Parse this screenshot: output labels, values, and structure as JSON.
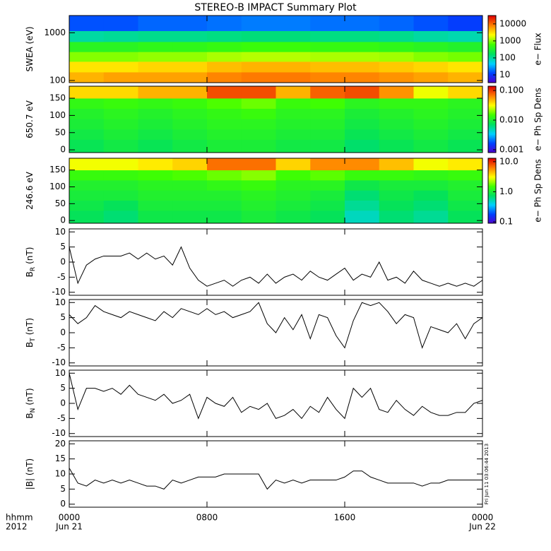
{
  "title": "STEREO-B IMPACT Summary Plot",
  "xaxis": {
    "xlim": [
      0,
      24
    ],
    "xticks": [
      {
        "value": 0,
        "label": "0000"
      },
      {
        "value": 8,
        "label": "0800"
      },
      {
        "value": 16,
        "label": "1600"
      },
      {
        "value": 24,
        "label": "0000"
      }
    ],
    "date_labels": [
      "Jun 21",
      "Jun 22"
    ],
    "axis_labels": [
      "hhmm",
      "2012"
    ]
  },
  "annotation": "Fri Jun 11 03:06:44 2013",
  "colormap": [
    "#5000d0",
    "#0040ff",
    "#00d0ff",
    "#00e060",
    "#40ff00",
    "#ffff00",
    "#ff8000",
    "#e00000"
  ],
  "chart_data": [
    {
      "type": "heatmap",
      "ylabel": "SWEA (eV)",
      "ylog": true,
      "ylim": [
        90,
        2300
      ],
      "yticks": [
        100,
        1000
      ],
      "xbins": [
        0,
        2,
        4,
        6,
        8,
        10,
        12,
        14,
        16,
        18,
        20,
        22,
        24
      ],
      "ybins": [
        90,
        150,
        250,
        400,
        650,
        1100,
        2300
      ],
      "z": [
        [
          5000,
          6000,
          6000,
          6000,
          8000,
          9000,
          9000,
          8000,
          8000,
          7000,
          6000,
          5000
        ],
        [
          3000,
          3000,
          3500,
          3500,
          4500,
          5000,
          5000,
          4500,
          4500,
          4000,
          3500,
          3000
        ],
        [
          1000,
          1000,
          1100,
          1100,
          1300,
          1400,
          1400,
          1300,
          1300,
          1200,
          1000,
          900
        ],
        [
          400,
          400,
          450,
          450,
          500,
          550,
          550,
          500,
          500,
          450,
          400,
          350
        ],
        [
          100,
          110,
          120,
          120,
          130,
          140,
          140,
          130,
          130,
          120,
          100,
          90
        ],
        [
          15,
          15,
          18,
          18,
          20,
          22,
          22,
          20,
          20,
          18,
          15,
          12
        ]
      ],
      "colorbar": {
        "label": "e− Flux",
        "log": true,
        "clim": [
          3.5,
          31000
        ],
        "ticks": [
          10,
          100,
          1000,
          10000
        ]
      }
    },
    {
      "type": "heatmap",
      "ylabel": "650.7 eV",
      "ylog": false,
      "ylim": [
        -8,
        185
      ],
      "yticks": [
        0,
        50,
        100,
        150
      ],
      "xbins": [
        0,
        2,
        4,
        6,
        8,
        10,
        12,
        14,
        16,
        18,
        20,
        22,
        24
      ],
      "ybins": [
        -8,
        30,
        60,
        90,
        120,
        150,
        185
      ],
      "z": [
        [
          0.008,
          0.009,
          0.008,
          0.009,
          0.01,
          0.01,
          0.009,
          0.009,
          0.007,
          0.008,
          0.009,
          0.008
        ],
        [
          0.009,
          0.01,
          0.009,
          0.01,
          0.011,
          0.011,
          0.01,
          0.01,
          0.008,
          0.009,
          0.01,
          0.009
        ],
        [
          0.01,
          0.011,
          0.01,
          0.011,
          0.012,
          0.012,
          0.011,
          0.011,
          0.009,
          0.01,
          0.011,
          0.01
        ],
        [
          0.011,
          0.012,
          0.011,
          0.012,
          0.013,
          0.014,
          0.012,
          0.012,
          0.01,
          0.011,
          0.012,
          0.011
        ],
        [
          0.013,
          0.014,
          0.013,
          0.014,
          0.016,
          0.018,
          0.014,
          0.015,
          0.012,
          0.013,
          0.013,
          0.012
        ],
        [
          0.04,
          0.04,
          0.05,
          0.05,
          0.09,
          0.09,
          0.05,
          0.08,
          0.09,
          0.06,
          0.03,
          0.04
        ]
      ],
      "colorbar": {
        "label": "e− Ph Sp Dens",
        "log": true,
        "clim": [
          0.0008,
          0.14
        ],
        "ticks": [
          {
            "value": 0.001,
            "label": "0.001"
          },
          {
            "value": 0.01,
            "label": "0.010"
          },
          {
            "value": 0.1,
            "label": "0.100"
          }
        ]
      }
    },
    {
      "type": "heatmap",
      "ylabel": "246.6 eV",
      "ylog": false,
      "ylim": [
        -8,
        185
      ],
      "yticks": [
        0,
        50,
        100,
        150
      ],
      "xbins": [
        0,
        2,
        4,
        6,
        8,
        10,
        12,
        14,
        16,
        18,
        20,
        22,
        24
      ],
      "ybins": [
        -8,
        30,
        60,
        90,
        120,
        150,
        185
      ],
      "z": [
        [
          0.8,
          0.7,
          0.9,
          0.9,
          0.9,
          1.0,
          0.9,
          0.8,
          0.5,
          0.7,
          0.6,
          0.8
        ],
        [
          0.9,
          0.8,
          1.0,
          1.0,
          1.0,
          1.1,
          1.0,
          0.9,
          0.6,
          0.8,
          0.7,
          0.9
        ],
        [
          1.0,
          1.0,
          1.1,
          1.1,
          1.1,
          1.2,
          1.1,
          1.0,
          0.7,
          0.9,
          0.8,
          1.0
        ],
        [
          1.1,
          1.1,
          1.2,
          1.2,
          1.3,
          1.4,
          1.2,
          1.2,
          0.9,
          1.0,
          1.0,
          1.1
        ],
        [
          1.4,
          1.4,
          1.5,
          1.6,
          1.8,
          2.0,
          1.5,
          1.7,
          1.4,
          1.4,
          1.3,
          1.4
        ],
        [
          3,
          3,
          3.5,
          4,
          7,
          7,
          4,
          6,
          6,
          4.5,
          3,
          3.5
        ]
      ],
      "colorbar": {
        "label": "e− Ph Sp Dens",
        "log": true,
        "clim": [
          0.09,
          13
        ],
        "ticks": [
          0.1,
          {
            "value": 1,
            "label": "1.0"
          },
          {
            "value": 10,
            "label": "10.0"
          }
        ]
      }
    },
    {
      "type": "line",
      "ylabel": "B",
      "ylabel_sub": "R",
      "ylabel_unit": "(nT)",
      "color": "#000000",
      "ylim": [
        -11,
        11
      ],
      "yticks": [
        -10,
        -5,
        0,
        5,
        10
      ],
      "x": [
        0,
        0.5,
        1,
        1.5,
        2,
        2.5,
        3,
        3.5,
        4,
        4.5,
        5,
        5.5,
        6,
        6.5,
        7,
        7.5,
        8,
        8.5,
        9,
        9.5,
        10,
        10.5,
        11,
        11.5,
        12,
        12.5,
        13,
        13.5,
        14,
        14.5,
        15,
        15.5,
        16,
        16.5,
        17,
        17.5,
        18,
        18.5,
        19,
        19.5,
        20,
        20.5,
        21,
        21.5,
        22,
        22.5,
        23,
        23.5,
        24
      ],
      "values": [
        5,
        -7,
        -1,
        1,
        2,
        2,
        2,
        3,
        1,
        3,
        1,
        2,
        -1,
        5,
        -2,
        -6,
        -8,
        -7,
        -6,
        -8,
        -6,
        -5,
        -7,
        -4,
        -7,
        -5,
        -4,
        -6,
        -3,
        -5,
        -6,
        -4,
        -2,
        -6,
        -4,
        -5,
        0,
        -6,
        -5,
        -7,
        -3,
        -6,
        -7,
        -8,
        -7,
        -8,
        -7,
        -8,
        -6
      ]
    },
    {
      "type": "line",
      "ylabel": "B",
      "ylabel_sub": "T",
      "ylabel_unit": "(nT)",
      "color": "#000000",
      "ylim": [
        -11,
        11
      ],
      "yticks": [
        -10,
        -5,
        0,
        5,
        10
      ],
      "x": [
        0,
        0.5,
        1,
        1.5,
        2,
        2.5,
        3,
        3.5,
        4,
        4.5,
        5,
        5.5,
        6,
        6.5,
        7,
        7.5,
        8,
        8.5,
        9,
        9.5,
        10,
        10.5,
        11,
        11.5,
        12,
        12.5,
        13,
        13.5,
        14,
        14.5,
        15,
        15.5,
        16,
        16.5,
        17,
        17.5,
        18,
        18.5,
        19,
        19.5,
        20,
        20.5,
        21,
        21.5,
        22,
        22.5,
        23,
        23.5,
        24
      ],
      "values": [
        6,
        3,
        5,
        9,
        7,
        6,
        5,
        7,
        6,
        5,
        4,
        7,
        5,
        8,
        7,
        6,
        8,
        6,
        7,
        5,
        6,
        7,
        10,
        3,
        0,
        5,
        1,
        6,
        -2,
        6,
        5,
        -1,
        -5,
        4,
        10,
        9,
        10,
        7,
        3,
        6,
        5,
        -5,
        2,
        1,
        0,
        3,
        -2,
        3,
        5
      ]
    },
    {
      "type": "line",
      "ylabel": "B",
      "ylabel_sub": "N",
      "ylabel_unit": "(nT)",
      "color": "#000000",
      "ylim": [
        -11,
        11
      ],
      "yticks": [
        -10,
        -5,
        0,
        5,
        10
      ],
      "x": [
        0,
        0.5,
        1,
        1.5,
        2,
        2.5,
        3,
        3.5,
        4,
        4.5,
        5,
        5.5,
        6,
        6.5,
        7,
        7.5,
        8,
        8.5,
        9,
        9.5,
        10,
        10.5,
        11,
        11.5,
        12,
        12.5,
        13,
        13.5,
        14,
        14.5,
        15,
        15.5,
        16,
        16.5,
        17,
        17.5,
        18,
        18.5,
        19,
        19.5,
        20,
        20.5,
        21,
        21.5,
        22,
        22.5,
        23,
        23.5,
        24
      ],
      "values": [
        10,
        -2,
        5,
        5,
        4,
        5,
        3,
        6,
        3,
        2,
        1,
        3,
        0,
        1,
        3,
        -5,
        2,
        0,
        -1,
        2,
        -3,
        -1,
        -2,
        0,
        -5,
        -4,
        -2,
        -5,
        -1,
        -3,
        2,
        -2,
        -5,
        5,
        2,
        5,
        -2,
        -3,
        1,
        -2,
        -4,
        -1,
        -3,
        -4,
        -4,
        -3,
        -3,
        0,
        1
      ]
    },
    {
      "type": "line",
      "ylabel": "|B| (nT)",
      "color": "#000000",
      "ylim": [
        -1,
        21
      ],
      "yticks": [
        0,
        5,
        10,
        15,
        20
      ],
      "x": [
        0,
        0.5,
        1,
        1.5,
        2,
        2.5,
        3,
        3.5,
        4,
        4.5,
        5,
        5.5,
        6,
        6.5,
        7,
        7.5,
        8,
        8.5,
        9,
        9.5,
        10,
        10.5,
        11,
        11.5,
        12,
        12.5,
        13,
        13.5,
        14,
        14.5,
        15,
        15.5,
        16,
        16.5,
        17,
        17.5,
        18,
        18.5,
        19,
        19.5,
        20,
        20.5,
        21,
        21.5,
        22,
        22.5,
        23,
        23.5,
        24
      ],
      "values": [
        12,
        7,
        6,
        8,
        7,
        8,
        7,
        8,
        7,
        6,
        6,
        5,
        8,
        7,
        8,
        9,
        9,
        9,
        10,
        10,
        10,
        10,
        10,
        5,
        8,
        7,
        8,
        7,
        8,
        8,
        8,
        8,
        9,
        11,
        11,
        9,
        8,
        7,
        7,
        7,
        7,
        6,
        7,
        7,
        8,
        8,
        8,
        8,
        8
      ]
    }
  ]
}
